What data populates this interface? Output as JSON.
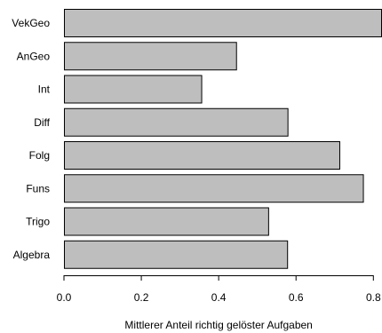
{
  "chart_data": {
    "type": "bar",
    "orientation": "horizontal",
    "categories": [
      "VekGeo",
      "AnGeo",
      "Int",
      "Diff",
      "Folg",
      "Funs",
      "Trigo",
      "Algebra"
    ],
    "values": [
      0.82,
      0.445,
      0.355,
      0.578,
      0.712,
      0.773,
      0.528,
      0.577
    ],
    "xlabel": "Mittlerer Anteil richtig gelöster Aufgaben",
    "ylabel": "",
    "xlim": [
      0,
      0.82
    ],
    "xticks": [
      0.0,
      0.2,
      0.4,
      0.6,
      0.8
    ],
    "xtick_labels": [
      "0.0",
      "0.2",
      "0.4",
      "0.6",
      "0.8"
    ],
    "grid": false,
    "bar_color": "#bebebe",
    "bar_edge_color": "#000000"
  }
}
